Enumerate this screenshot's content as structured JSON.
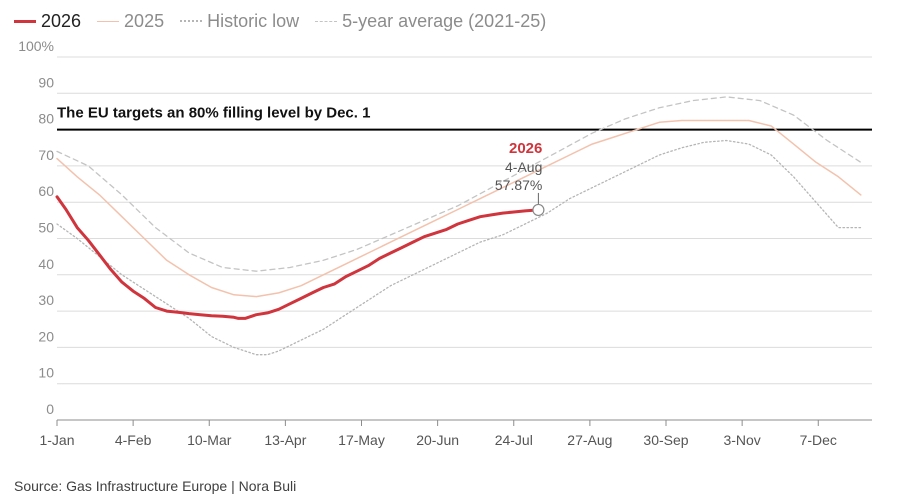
{
  "legend": [
    {
      "label": "2026",
      "color": "#d0343c",
      "style": "solid-thick"
    },
    {
      "label": "2025",
      "color": "#f3c2ad",
      "style": "solid-thin"
    },
    {
      "label": "Historic low",
      "color": "#b5b5b5",
      "style": "dotted"
    },
    {
      "label": "5-year average (2021-25)",
      "color": "#c4c4c4",
      "style": "dashed"
    }
  ],
  "source": "Source: Gas Infrastructure Europe | Nora Buli",
  "chart_data": {
    "type": "line",
    "y_tick_labels": [
      "0",
      "10",
      "20",
      "30",
      "40",
      "50",
      "60",
      "70",
      "80",
      "90",
      "100%"
    ],
    "ylim": [
      0,
      100
    ],
    "xlim": [
      1,
      365
    ],
    "x_tick_labels": [
      {
        "label": "1-Jan",
        "day": 1
      },
      {
        "label": "4-Feb",
        "day": 35
      },
      {
        "label": "10-Mar",
        "day": 69
      },
      {
        "label": "13-Apr",
        "day": 103
      },
      {
        "label": "17-May",
        "day": 137
      },
      {
        "label": "20-Jun",
        "day": 171
      },
      {
        "label": "24-Jul",
        "day": 205
      },
      {
        "label": "27-Aug",
        "day": 239
      },
      {
        "label": "30-Sep",
        "day": 273
      },
      {
        "label": "3-Nov",
        "day": 307
      },
      {
        "label": "7-Dec",
        "day": 341
      }
    ],
    "grid": true,
    "target": {
      "value": 80,
      "label": "The EU targets an 80% filling level by Dec. 1"
    },
    "annotation": {
      "series": "2026",
      "title": "2026",
      "date": "4-Aug",
      "value_label": "57.87%",
      "x": 216,
      "y": 57.87
    },
    "series": [
      {
        "name": "5-year average (2021-25)",
        "color": "#c4c4c4",
        "x": [
          1,
          15,
          30,
          45,
          60,
          75,
          90,
          105,
          120,
          135,
          150,
          165,
          180,
          195,
          210,
          225,
          240,
          255,
          270,
          285,
          300,
          315,
          330,
          345,
          360
        ],
        "y": [
          74,
          70,
          62,
          53,
          46,
          42,
          41,
          42,
          44,
          47,
          51,
          55,
          59,
          64,
          69,
          74,
          79,
          83,
          86,
          88,
          89,
          88,
          84,
          77,
          71
        ]
      },
      {
        "name": "Historic low",
        "color": "#b5b5b5",
        "x": [
          1,
          10,
          20,
          30,
          40,
          50,
          60,
          70,
          80,
          90,
          95,
          100,
          110,
          120,
          130,
          140,
          150,
          160,
          170,
          180,
          190,
          200,
          210,
          220,
          230,
          240,
          250,
          260,
          270,
          280,
          290,
          300,
          310,
          320,
          330,
          340,
          350,
          360
        ],
        "y": [
          54,
          50,
          45,
          40,
          36,
          32,
          28,
          23,
          20,
          18,
          18,
          19,
          22,
          25,
          29,
          33,
          37,
          40,
          43,
          46,
          49,
          51,
          54,
          57,
          61,
          64,
          67,
          70,
          73,
          75,
          76.5,
          77,
          76,
          73,
          67,
          60,
          53,
          53
        ]
      },
      {
        "name": "2025",
        "color": "#f3c2ad",
        "x": [
          1,
          10,
          20,
          30,
          40,
          50,
          60,
          70,
          80,
          90,
          100,
          110,
          120,
          130,
          140,
          150,
          160,
          170,
          180,
          190,
          200,
          210,
          220,
          230,
          240,
          250,
          260,
          270,
          280,
          290,
          300,
          310,
          320,
          330,
          340,
          350,
          360
        ],
        "y": [
          72,
          67,
          62,
          56,
          50,
          44,
          40,
          36.5,
          34.5,
          34,
          35,
          37,
          40,
          43,
          46,
          49,
          52,
          55,
          58,
          61,
          64,
          67,
          70,
          73,
          76,
          78,
          80,
          82,
          82.5,
          82.5,
          82.5,
          82.5,
          81,
          76,
          71,
          67,
          62
        ]
      },
      {
        "name": "2026",
        "color": "#d0343c",
        "x": [
          1,
          5,
          10,
          15,
          20,
          25,
          30,
          35,
          40,
          45,
          50,
          55,
          60,
          65,
          70,
          75,
          80,
          82,
          85,
          90,
          95,
          100,
          105,
          110,
          115,
          120,
          125,
          130,
          135,
          140,
          145,
          150,
          155,
          160,
          165,
          170,
          175,
          180,
          185,
          190,
          195,
          200,
          205,
          210,
          216
        ],
        "y": [
          61.5,
          58,
          53,
          49.5,
          45.5,
          41.5,
          38,
          35.5,
          33.5,
          31,
          30,
          29.7,
          29.3,
          29,
          28.7,
          28.6,
          28.3,
          28,
          28,
          29,
          29.5,
          30.5,
          32,
          33.5,
          35,
          36.5,
          37.5,
          39.5,
          41,
          42.5,
          44.5,
          46,
          47.5,
          49,
          50.5,
          51.5,
          52.5,
          54,
          55,
          56,
          56.5,
          57,
          57.3,
          57.6,
          57.87
        ]
      }
    ]
  }
}
